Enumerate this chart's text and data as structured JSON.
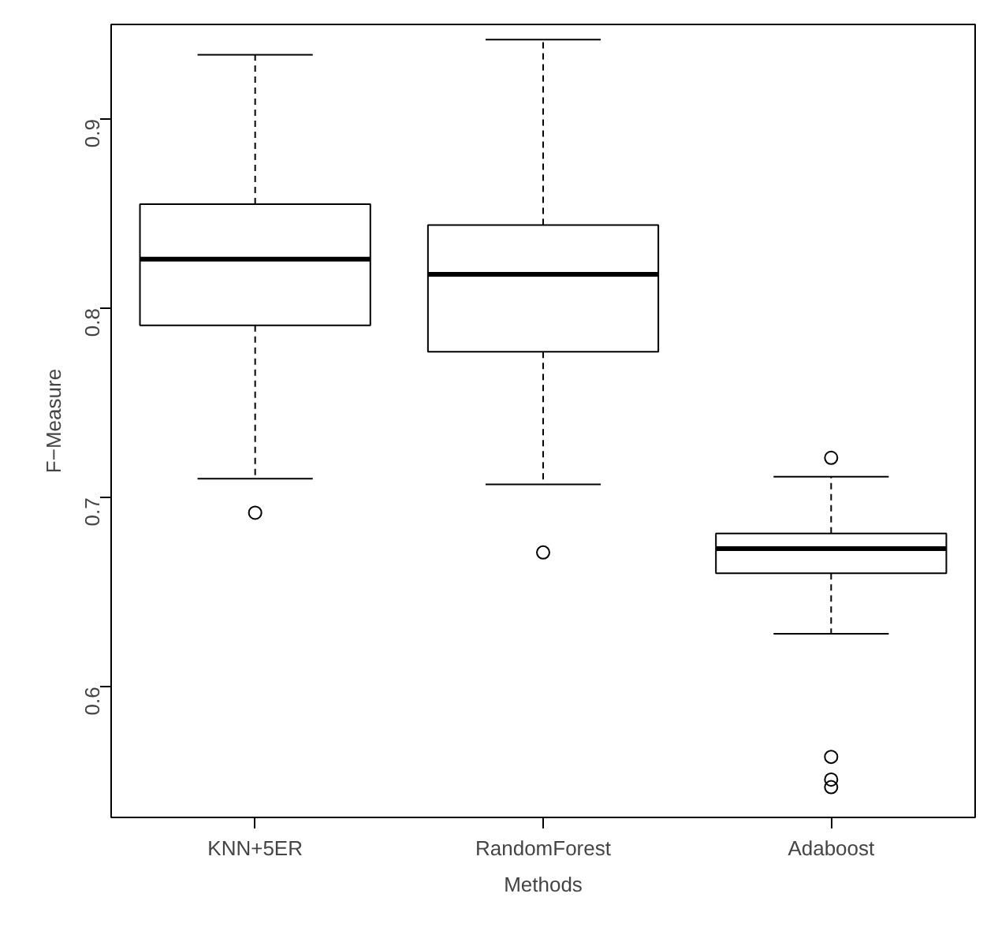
{
  "chart_data": {
    "type": "box",
    "xlabel": "Methods",
    "ylabel": "F−Measure",
    "categories": [
      "KNN+5ER",
      "RandomForest",
      "Adaboost"
    ],
    "boxes": [
      {
        "low": 0.71,
        "q1": 0.791,
        "median": 0.826,
        "q3": 0.855,
        "high": 0.934,
        "outliers": [
          0.692
        ]
      },
      {
        "low": 0.707,
        "q1": 0.777,
        "median": 0.818,
        "q3": 0.844,
        "high": 0.942,
        "outliers": [
          0.671
        ]
      },
      {
        "low": 0.628,
        "q1": 0.66,
        "median": 0.673,
        "q3": 0.681,
        "high": 0.711,
        "outliers": [
          0.721,
          0.563,
          0.551,
          0.547
        ]
      }
    ],
    "color": "#000000",
    "ylim": [
      0.531,
      0.95
    ],
    "yticks": [
      0.6,
      0.7,
      0.8,
      0.9
    ],
    "grid": false
  }
}
